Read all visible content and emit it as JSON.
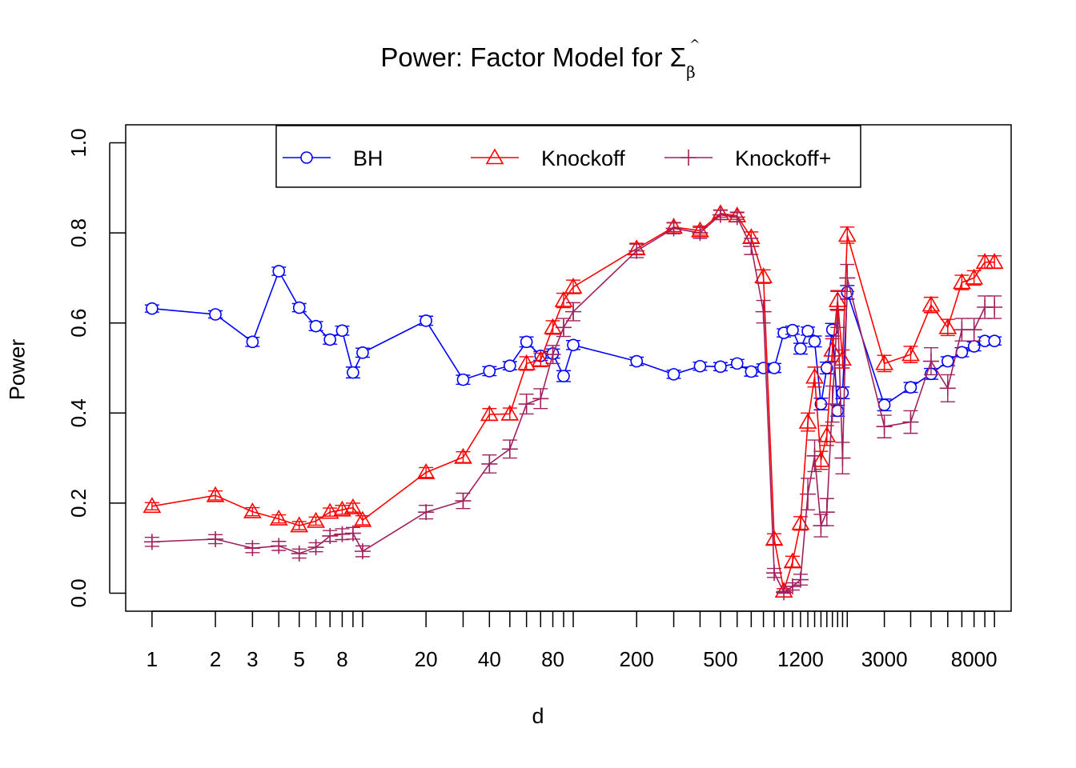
{
  "chart_data": {
    "type": "line",
    "title": "Power: Factor Model for Σ",
    "title_symbol_sub": "β",
    "title_symbol_hat": "^",
    "xlabel": "d",
    "ylabel": "Power",
    "xscale": "log",
    "xlim": [
      0.75,
      12000
    ],
    "ylim": [
      -0.04,
      1.04
    ],
    "x_ticks_major_labels": [
      1,
      2,
      3,
      5,
      8,
      20,
      40,
      80,
      200,
      500,
      1200,
      3000,
      8000
    ],
    "x_ticks_minor": [
      4,
      6,
      7,
      9,
      10,
      30,
      50,
      60,
      70,
      90,
      100,
      300,
      400,
      600,
      700,
      800,
      900,
      1000,
      1100,
      1300,
      1400,
      1500,
      1600,
      1700,
      1800,
      1900,
      2000,
      4000,
      5000,
      6000,
      7000,
      9000,
      10000
    ],
    "y_ticks": [
      "0.0",
      "0.2",
      "0.4",
      "0.6",
      "0.8",
      "1.0"
    ],
    "y_tick_values": [
      0,
      0.2,
      0.4,
      0.6,
      0.8,
      1.0
    ],
    "grid": false,
    "legend_position": "top-center",
    "x": [
      1,
      2,
      3,
      4,
      5,
      6,
      7,
      8,
      9,
      10,
      20,
      30,
      40,
      50,
      60,
      70,
      80,
      90,
      100,
      200,
      300,
      400,
      500,
      600,
      700,
      800,
      900,
      1000,
      1100,
      1200,
      1300,
      1400,
      1500,
      1600,
      1700,
      1800,
      1900,
      2000,
      3000,
      4000,
      5000,
      6000,
      7000,
      8000,
      9000,
      10000
    ],
    "series": [
      {
        "name": "BH",
        "color": "#0000FF",
        "marker": "circle",
        "values": [
          0.632,
          0.619,
          0.558,
          0.715,
          0.634,
          0.593,
          0.563,
          0.583,
          0.49,
          0.534,
          0.605,
          0.474,
          0.493,
          0.505,
          0.558,
          0.527,
          0.532,
          0.482,
          0.551,
          0.515,
          0.486,
          0.504,
          0.503,
          0.51,
          0.492,
          0.5,
          0.5,
          0.578,
          0.584,
          0.543,
          0.582,
          0.559,
          0.42,
          0.5,
          0.585,
          0.405,
          0.445,
          0.668,
          0.418,
          0.457,
          0.487,
          0.515,
          0.535,
          0.548,
          0.56,
          0.56
        ],
        "errors": [
          0.008,
          0.008,
          0.01,
          0.009,
          0.009,
          0.01,
          0.01,
          0.01,
          0.012,
          0.01,
          0.01,
          0.01,
          0.01,
          0.009,
          0.011,
          0.01,
          0.01,
          0.012,
          0.01,
          0.009,
          0.009,
          0.009,
          0.009,
          0.009,
          0.01,
          0.009,
          0.01,
          0.009,
          0.009,
          0.012,
          0.009,
          0.012,
          0.013,
          0.013,
          0.014,
          0.012,
          0.013,
          0.015,
          0.013,
          0.011,
          0.012,
          0.01,
          0.01,
          0.01,
          0.009,
          0.009
        ]
      },
      {
        "name": "Knockoff",
        "color": "#FF0000",
        "marker": "triangle",
        "values": [
          0.193,
          0.217,
          0.181,
          0.165,
          0.15,
          0.16,
          0.18,
          0.185,
          0.19,
          0.162,
          0.268,
          0.302,
          0.397,
          0.398,
          0.51,
          0.518,
          0.59,
          0.65,
          0.68,
          0.765,
          0.813,
          0.805,
          0.843,
          0.838,
          0.79,
          0.703,
          0.12,
          0.005,
          0.07,
          0.155,
          0.38,
          0.48,
          0.295,
          0.35,
          0.54,
          0.65,
          0.52,
          0.795,
          0.51,
          0.53,
          0.64,
          0.59,
          0.69,
          0.7,
          0.735,
          0.735
        ],
        "errors": [
          0.008,
          0.01,
          0.009,
          0.009,
          0.009,
          0.009,
          0.009,
          0.01,
          0.01,
          0.01,
          0.011,
          0.012,
          0.013,
          0.013,
          0.015,
          0.015,
          0.015,
          0.016,
          0.015,
          0.012,
          0.01,
          0.01,
          0.008,
          0.008,
          0.012,
          0.015,
          0.012,
          0.005,
          0.012,
          0.015,
          0.02,
          0.022,
          0.02,
          0.022,
          0.025,
          0.022,
          0.02,
          0.018,
          0.018,
          0.018,
          0.017,
          0.018,
          0.016,
          0.016,
          0.014,
          0.014
        ]
      },
      {
        "name": "Knockoff+",
        "color": "#A0205E",
        "marker": "plus",
        "values": [
          0.114,
          0.12,
          0.1,
          0.105,
          0.088,
          0.102,
          0.127,
          0.131,
          0.133,
          0.093,
          0.18,
          0.205,
          0.287,
          0.32,
          0.42,
          0.432,
          0.53,
          0.59,
          0.625,
          0.76,
          0.81,
          0.8,
          0.84,
          0.835,
          0.77,
          0.625,
          0.045,
          0.002,
          0.015,
          0.03,
          0.22,
          0.305,
          0.15,
          0.18,
          0.42,
          0.63,
          0.3,
          0.7,
          0.37,
          0.38,
          0.515,
          0.455,
          0.585,
          0.585,
          0.635,
          0.635
        ],
        "errors": [
          0.01,
          0.01,
          0.01,
          0.01,
          0.01,
          0.01,
          0.012,
          0.012,
          0.013,
          0.012,
          0.015,
          0.017,
          0.02,
          0.02,
          0.022,
          0.022,
          0.02,
          0.02,
          0.02,
          0.015,
          0.012,
          0.012,
          0.01,
          0.01,
          0.018,
          0.025,
          0.01,
          0.002,
          0.008,
          0.012,
          0.035,
          0.035,
          0.025,
          0.03,
          0.04,
          0.04,
          0.035,
          0.03,
          0.025,
          0.025,
          0.03,
          0.03,
          0.025,
          0.025,
          0.025,
          0.025
        ]
      }
    ]
  }
}
